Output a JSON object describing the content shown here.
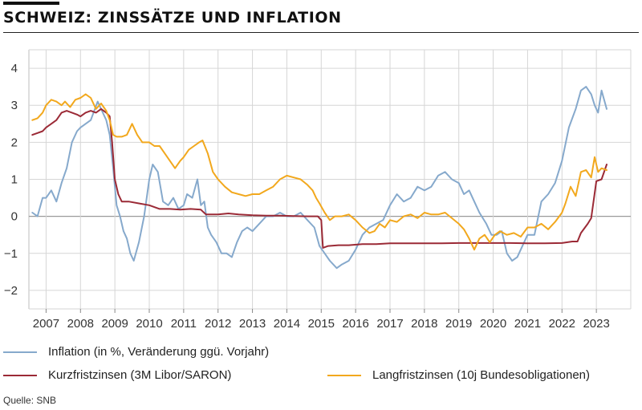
{
  "header": {
    "title": "SCHWEIZ: ZINSSÄTZE UND INFLATION"
  },
  "source": "Quelle: SNB",
  "colors": {
    "inflation": "#86a9cc",
    "kurz": "#9b2a36",
    "lang": "#f2a81d",
    "grid": "#d6d6d6",
    "zero": "#9a9a9a"
  },
  "chart_data": {
    "type": "line",
    "xlim": [
      2006.5,
      2024.0
    ],
    "ylim": [
      -2.5,
      4.5
    ],
    "yticks": [
      -2,
      -1,
      0,
      1,
      2,
      3,
      4
    ],
    "ytick_labels": [
      "−2",
      "−1",
      "0",
      "1",
      "2",
      "3",
      "4"
    ],
    "xticks": [
      2007,
      2008,
      2009,
      2010,
      2011,
      2012,
      2013,
      2014,
      2015,
      2016,
      2017,
      2018,
      2019,
      2020,
      2021,
      2022,
      2023
    ],
    "xtick_labels": [
      "2007",
      "2008",
      "2009",
      "2010",
      "2011",
      "2012",
      "2013",
      "2014",
      "2015",
      "2016",
      "2017",
      "2018",
      "2019",
      "2020",
      "2021",
      "2022",
      "2023"
    ],
    "grid": true,
    "legend_position": "bottom",
    "series": [
      {
        "name": "Inflation (in %, Veränderung ggü. Vorjahr)",
        "key": "inflation",
        "x": [
          2006.6,
          2006.75,
          2006.9,
          2007.0,
          2007.15,
          2007.3,
          2007.45,
          2007.6,
          2007.75,
          2007.9,
          2008.0,
          2008.15,
          2008.3,
          2008.5,
          2008.6,
          2008.75,
          2008.85,
          2008.95,
          2009.05,
          2009.15,
          2009.25,
          2009.35,
          2009.45,
          2009.55,
          2009.7,
          2009.85,
          2010.0,
          2010.1,
          2010.25,
          2010.4,
          2010.55,
          2010.7,
          2010.85,
          2011.0,
          2011.1,
          2011.25,
          2011.4,
          2011.5,
          2011.6,
          2011.7,
          2011.8,
          2011.95,
          2012.1,
          2012.25,
          2012.4,
          2012.55,
          2012.7,
          2012.85,
          2013.0,
          2013.2,
          2013.4,
          2013.6,
          2013.8,
          2014.0,
          2014.2,
          2014.4,
          2014.6,
          2014.8,
          2014.95,
          2015.1,
          2015.25,
          2015.45,
          2015.6,
          2015.8,
          2016.0,
          2016.2,
          2016.4,
          2016.6,
          2016.8,
          2017.0,
          2017.2,
          2017.4,
          2017.6,
          2017.8,
          2018.0,
          2018.2,
          2018.4,
          2018.6,
          2018.8,
          2019.0,
          2019.15,
          2019.3,
          2019.45,
          2019.6,
          2019.8,
          2019.95,
          2020.1,
          2020.25,
          2020.4,
          2020.55,
          2020.7,
          2020.85,
          2021.0,
          2021.2,
          2021.4,
          2021.6,
          2021.8,
          2022.0,
          2022.2,
          2022.4,
          2022.55,
          2022.7,
          2022.85,
          2022.95,
          2023.05,
          2023.15,
          2023.3
        ],
        "y": [
          0.1,
          0.0,
          0.5,
          0.5,
          0.7,
          0.4,
          0.9,
          1.3,
          2.0,
          2.3,
          2.4,
          2.5,
          2.6,
          3.1,
          2.9,
          2.6,
          2.2,
          1.3,
          0.3,
          0.0,
          -0.4,
          -0.6,
          -1.0,
          -1.2,
          -0.7,
          0.0,
          1.0,
          1.4,
          1.2,
          0.4,
          0.3,
          0.5,
          0.2,
          0.3,
          0.6,
          0.5,
          1.0,
          0.3,
          0.4,
          -0.3,
          -0.5,
          -0.7,
          -1.0,
          -1.0,
          -1.1,
          -0.7,
          -0.4,
          -0.3,
          -0.4,
          -0.2,
          0.0,
          0.0,
          0.1,
          0.0,
          0.0,
          0.1,
          -0.1,
          -0.3,
          -0.8,
          -1.0,
          -1.2,
          -1.4,
          -1.3,
          -1.2,
          -0.9,
          -0.5,
          -0.3,
          -0.2,
          -0.1,
          0.3,
          0.6,
          0.4,
          0.5,
          0.8,
          0.7,
          0.8,
          1.1,
          1.2,
          1.0,
          0.9,
          0.6,
          0.7,
          0.4,
          0.1,
          -0.2,
          -0.5,
          -0.5,
          -0.4,
          -1.0,
          -1.2,
          -1.1,
          -0.8,
          -0.5,
          -0.5,
          0.4,
          0.6,
          0.9,
          1.5,
          2.4,
          2.9,
          3.4,
          3.5,
          3.3,
          3.0,
          2.8,
          3.4,
          2.9
        ]
      },
      {
        "name": "Kurzfristzinsen (3M Libor/SARON)",
        "key": "kurz",
        "x": [
          2006.6,
          2006.75,
          2006.9,
          2007.0,
          2007.15,
          2007.3,
          2007.45,
          2007.6,
          2007.75,
          2007.9,
          2008.0,
          2008.15,
          2008.3,
          2008.45,
          2008.6,
          2008.75,
          2008.85,
          2008.92,
          2009.0,
          2009.1,
          2009.2,
          2009.4,
          2009.7,
          2010.0,
          2010.3,
          2010.6,
          2010.9,
          2011.2,
          2011.5,
          2011.65,
          2011.8,
          2012.0,
          2012.3,
          2012.6,
          2013.0,
          2013.4,
          2013.8,
          2014.2,
          2014.6,
          2014.8,
          2014.9,
          2015.0,
          2015.05,
          2015.2,
          2015.5,
          2015.8,
          2016.2,
          2016.6,
          2017.0,
          2017.5,
          2018.0,
          2018.5,
          2019.0,
          2019.5,
          2020.0,
          2020.5,
          2021.0,
          2021.5,
          2022.0,
          2022.3,
          2022.45,
          2022.55,
          2022.75,
          2022.85,
          2023.0,
          2023.15,
          2023.3
        ],
        "y": [
          2.2,
          2.25,
          2.3,
          2.4,
          2.5,
          2.6,
          2.8,
          2.85,
          2.8,
          2.75,
          2.7,
          2.8,
          2.85,
          2.8,
          2.9,
          2.8,
          2.7,
          2.0,
          1.0,
          0.6,
          0.4,
          0.4,
          0.35,
          0.3,
          0.2,
          0.2,
          0.18,
          0.2,
          0.18,
          0.05,
          0.05,
          0.05,
          0.08,
          0.05,
          0.03,
          0.02,
          0.02,
          0.01,
          0.0,
          0.0,
          0.0,
          -0.1,
          -0.85,
          -0.8,
          -0.78,
          -0.78,
          -0.75,
          -0.75,
          -0.73,
          -0.73,
          -0.73,
          -0.73,
          -0.72,
          -0.72,
          -0.72,
          -0.72,
          -0.73,
          -0.73,
          -0.72,
          -0.68,
          -0.68,
          -0.45,
          -0.2,
          -0.05,
          0.95,
          1.0,
          1.4
        ]
      },
      {
        "name": "Langfristzinsen (10j Bundesobligationen)",
        "key": "lang",
        "x": [
          2006.6,
          2006.75,
          2006.9,
          2007.0,
          2007.15,
          2007.3,
          2007.45,
          2007.55,
          2007.7,
          2007.85,
          2008.0,
          2008.15,
          2008.3,
          2008.45,
          2008.6,
          2008.75,
          2008.85,
          2008.95,
          2009.05,
          2009.2,
          2009.35,
          2009.5,
          2009.65,
          2009.8,
          2010.0,
          2010.15,
          2010.3,
          2010.45,
          2010.6,
          2010.75,
          2010.9,
          2011.0,
          2011.15,
          2011.3,
          2011.45,
          2011.55,
          2011.7,
          2011.85,
          2012.0,
          2012.2,
          2012.4,
          2012.6,
          2012.8,
          2013.0,
          2013.2,
          2013.4,
          2013.6,
          2013.8,
          2014.0,
          2014.2,
          2014.4,
          2014.6,
          2014.75,
          2014.85,
          2014.95,
          2015.1,
          2015.25,
          2015.4,
          2015.6,
          2015.8,
          2016.0,
          2016.2,
          2016.4,
          2016.55,
          2016.7,
          2016.85,
          2017.0,
          2017.2,
          2017.4,
          2017.6,
          2017.8,
          2018.0,
          2018.2,
          2018.4,
          2018.6,
          2018.8,
          2019.0,
          2019.15,
          2019.3,
          2019.45,
          2019.6,
          2019.75,
          2019.9,
          2020.05,
          2020.2,
          2020.4,
          2020.6,
          2020.8,
          2021.0,
          2021.2,
          2021.4,
          2021.6,
          2021.8,
          2022.0,
          2022.1,
          2022.25,
          2022.4,
          2022.55,
          2022.7,
          2022.85,
          2022.95,
          2023.05,
          2023.15,
          2023.3
        ],
        "y": [
          2.6,
          2.65,
          2.8,
          3.0,
          3.15,
          3.1,
          3.0,
          3.1,
          2.95,
          3.15,
          3.2,
          3.3,
          3.2,
          2.9,
          3.05,
          2.85,
          2.6,
          2.2,
          2.15,
          2.15,
          2.2,
          2.5,
          2.2,
          2.0,
          2.0,
          1.9,
          1.9,
          1.7,
          1.5,
          1.3,
          1.5,
          1.6,
          1.8,
          1.9,
          2.0,
          2.05,
          1.7,
          1.2,
          1.0,
          0.8,
          0.65,
          0.6,
          0.55,
          0.6,
          0.6,
          0.7,
          0.8,
          1.0,
          1.1,
          1.05,
          1.0,
          0.85,
          0.7,
          0.5,
          0.35,
          0.1,
          -0.1,
          0.0,
          0.0,
          0.05,
          -0.1,
          -0.3,
          -0.45,
          -0.4,
          -0.2,
          -0.3,
          -0.1,
          -0.15,
          0.0,
          0.05,
          -0.05,
          0.1,
          0.05,
          0.05,
          0.1,
          -0.05,
          -0.2,
          -0.35,
          -0.6,
          -0.9,
          -0.6,
          -0.5,
          -0.7,
          -0.5,
          -0.4,
          -0.5,
          -0.45,
          -0.55,
          -0.3,
          -0.3,
          -0.2,
          -0.35,
          -0.15,
          0.1,
          0.35,
          0.8,
          0.55,
          1.2,
          1.25,
          1.05,
          1.6,
          1.2,
          1.3,
          1.25
        ]
      }
    ]
  }
}
